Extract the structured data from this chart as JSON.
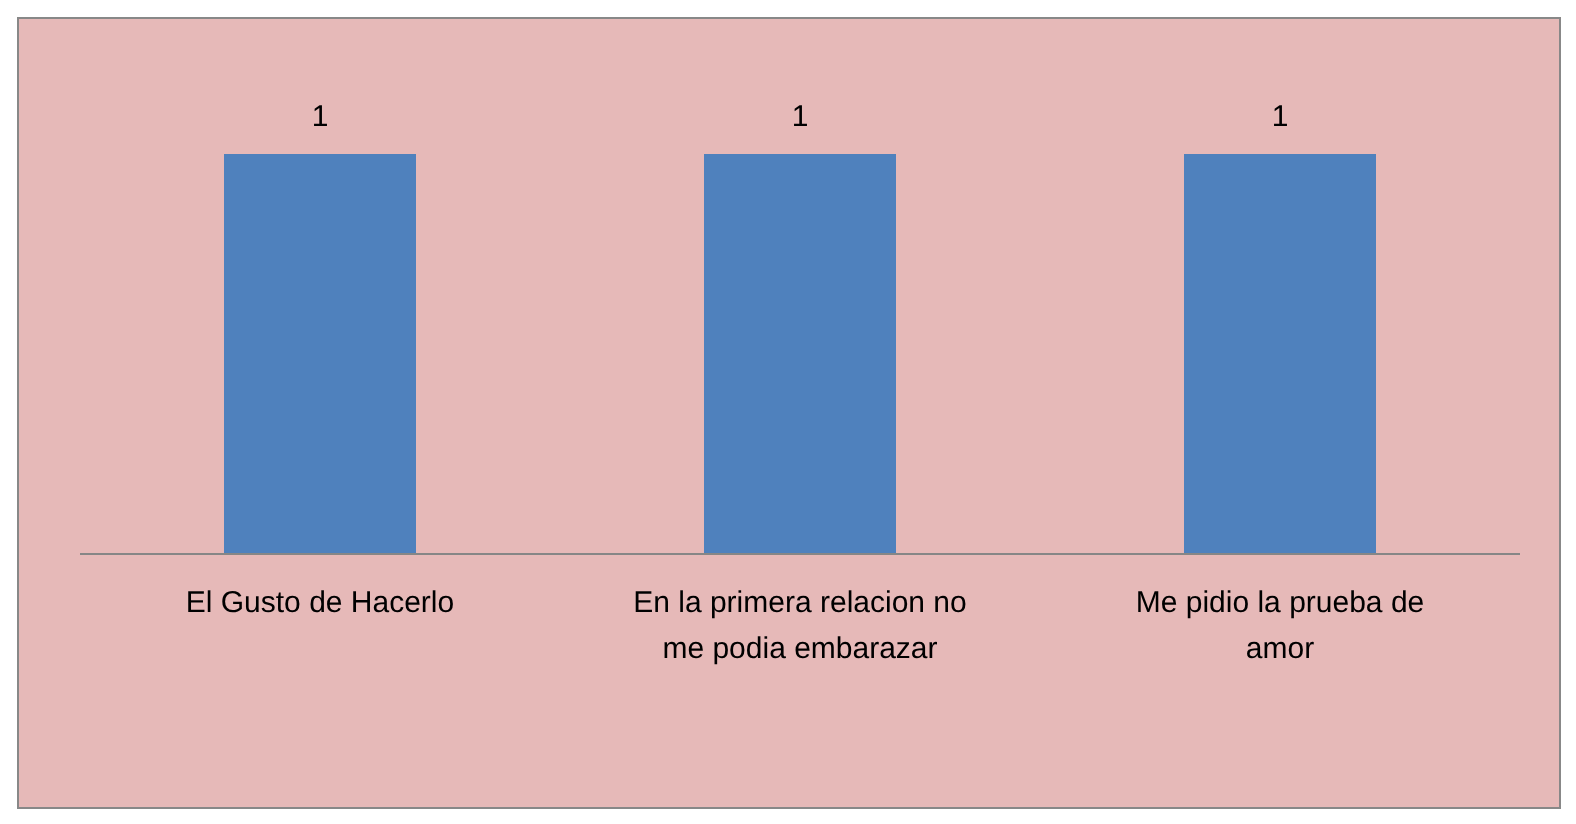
{
  "chart_data": {
    "type": "bar",
    "categories": [
      "El Gusto de Hacerlo",
      "En la primera relacion no me podia embarazar",
      "Me pidio la prueba de amor"
    ],
    "values": [
      1,
      1,
      1
    ],
    "color": "#4f81bd",
    "data_labels": true
  }
}
